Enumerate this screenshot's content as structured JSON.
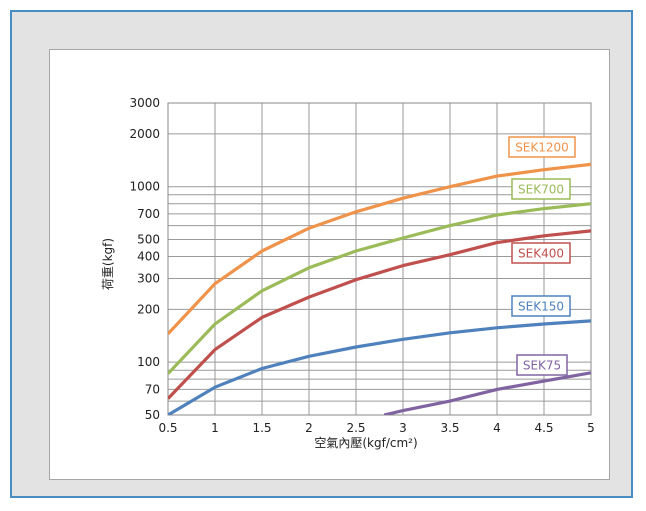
{
  "chart_data": {
    "type": "line",
    "title": "",
    "xlabel": "空氣內壓(kgf/cm²)",
    "ylabel": "荷重(kgf)",
    "x_ticks": [
      "0.5",
      "1",
      "1.5",
      "2",
      "2.5",
      "3",
      "3.5",
      "4",
      "4.5",
      "5"
    ],
    "x_tick_values": [
      0.5,
      1,
      1.5,
      2,
      2.5,
      3,
      3.5,
      4,
      4.5,
      5
    ],
    "y_scale": "log",
    "y_tick_labels": [
      "50",
      "70",
      "100",
      "200",
      "300",
      "400",
      "500",
      "700",
      "1000",
      "2000",
      "3000"
    ],
    "y_tick_values": [
      50,
      70,
      100,
      200,
      300,
      400,
      500,
      700,
      1000,
      2000,
      3000
    ],
    "y_minor_grid": [
      60,
      80,
      90,
      600,
      800,
      900
    ],
    "xlim": [
      0.5,
      5
    ],
    "ylim": [
      50,
      3000
    ],
    "grid": true,
    "series": [
      {
        "name": "SEK1200",
        "color": "#f0934a",
        "x": [
          0.5,
          1,
          1.5,
          2,
          2.5,
          3,
          3.5,
          4,
          4.5,
          5
        ],
        "y": [
          145,
          280,
          430,
          580,
          720,
          860,
          1000,
          1150,
          1250,
          1340
        ]
      },
      {
        "name": "SEK700",
        "color": "#9bbb59",
        "x": [
          0.5,
          1,
          1.5,
          2,
          2.5,
          3,
          3.5,
          4,
          4.5,
          5
        ],
        "y": [
          86,
          165,
          255,
          345,
          430,
          510,
          600,
          690,
          750,
          800
        ]
      },
      {
        "name": "SEK400",
        "color": "#c0504d",
        "x": [
          0.5,
          1,
          1.5,
          2,
          2.5,
          3,
          3.5,
          4,
          4.5,
          5
        ],
        "y": [
          62,
          118,
          180,
          235,
          295,
          355,
          410,
          480,
          525,
          560
        ]
      },
      {
        "name": "SEK150",
        "color": "#4f81bd",
        "x": [
          0.5,
          1,
          1.5,
          2,
          2.5,
          3,
          3.5,
          4,
          4.5,
          5
        ],
        "y": [
          50,
          72,
          92,
          108,
          122,
          135,
          147,
          157,
          165,
          172
        ]
      },
      {
        "name": "SEK75",
        "color": "#8064a2",
        "x": [
          2.8,
          3,
          3.5,
          4,
          4.5,
          5
        ],
        "y": [
          50,
          53,
          60,
          70,
          78,
          87
        ]
      }
    ]
  }
}
